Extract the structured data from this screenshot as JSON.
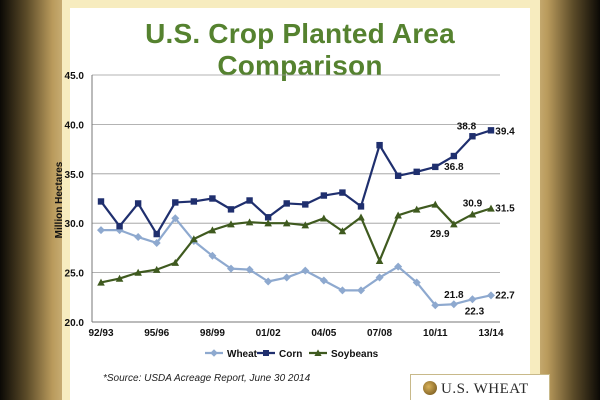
{
  "slide": {
    "source_note": "*Source: USDA Acreage Report, June 30 2014",
    "logo_text": "U.S. WHEAT"
  },
  "colors": {
    "title": "#55822f",
    "wheat": "#8ea9cf",
    "corn": "#1f2f6e",
    "soybeans": "#3f5a1f"
  },
  "chart_data": {
    "type": "line",
    "title": "U.S. Crop Planted Area Comparison",
    "xlabel": "",
    "ylabel": "Million Hectares",
    "ylim": [
      20.0,
      45.0
    ],
    "yticks": [
      "20.0",
      "25.0",
      "30.0",
      "35.0",
      "40.0",
      "45.0"
    ],
    "x": [
      "92/93",
      "93/94",
      "94/95",
      "95/96",
      "96/97",
      "97/98",
      "98/99",
      "99/00",
      "00/01",
      "01/02",
      "02/03",
      "03/04",
      "04/05",
      "05/06",
      "06/07",
      "07/08",
      "08/09",
      "09/10",
      "10/11",
      "11/12",
      "12/13",
      "13/14"
    ],
    "xticks": [
      "92/93",
      "95/96",
      "98/99",
      "01/02",
      "04/05",
      "07/08",
      "10/11",
      "13/14"
    ],
    "series": [
      {
        "name": "Wheat",
        "values": [
          29.3,
          29.3,
          28.6,
          28.0,
          30.5,
          28.2,
          26.7,
          25.4,
          25.3,
          24.1,
          24.5,
          25.2,
          24.2,
          23.2,
          23.2,
          24.5,
          25.6,
          24.0,
          21.7,
          21.8,
          22.3,
          22.7
        ]
      },
      {
        "name": "Corn",
        "values": [
          32.2,
          29.7,
          32.0,
          28.9,
          32.1,
          32.2,
          32.5,
          31.4,
          32.3,
          30.6,
          32.0,
          31.9,
          32.8,
          33.1,
          31.7,
          37.9,
          34.8,
          35.2,
          35.7,
          36.8,
          38.8,
          39.4
        ]
      },
      {
        "name": "Soybeans",
        "values": [
          24.0,
          24.4,
          25.0,
          25.3,
          26.0,
          28.4,
          29.3,
          29.9,
          30.1,
          30.0,
          30.0,
          29.8,
          30.5,
          29.2,
          30.6,
          26.2,
          30.8,
          31.4,
          31.9,
          29.9,
          30.9,
          31.5
        ]
      }
    ],
    "annotations": [
      {
        "series": "Corn",
        "index": 19,
        "label": "36.8"
      },
      {
        "series": "Corn",
        "index": 20,
        "label": "38.8"
      },
      {
        "series": "Corn",
        "index": 21,
        "label": "39.4"
      },
      {
        "series": "Soybeans",
        "index": 19,
        "label": "29.9"
      },
      {
        "series": "Soybeans",
        "index": 20,
        "label": "30.9"
      },
      {
        "series": "Soybeans",
        "index": 21,
        "label": "31.5"
      },
      {
        "series": "Wheat",
        "index": 19,
        "label": "21.8"
      },
      {
        "series": "Wheat",
        "index": 20,
        "label": "22.3"
      },
      {
        "series": "Wheat",
        "index": 21,
        "label": "22.7"
      }
    ],
    "legend": {
      "position": "bottom",
      "entries": [
        "Wheat",
        "Corn",
        "Soybeans"
      ]
    }
  }
}
